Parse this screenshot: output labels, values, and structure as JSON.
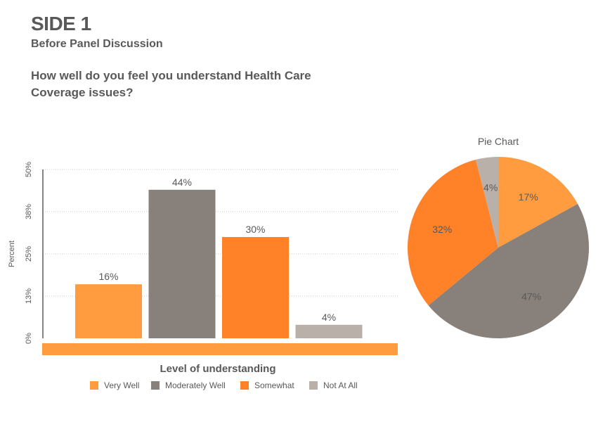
{
  "page": {
    "title": "SIDE 1",
    "subtitle": "Before Panel Discussion",
    "question": "How well do you feel you understand Health Care Coverage issues?"
  },
  "colors": {
    "very_well": "#FF9C3F",
    "moderately_well": "#87807B",
    "somewhat": "#FF8128",
    "not_at_all": "#B9B0AA",
    "text": "#595959"
  },
  "chart_data": [
    {
      "type": "bar",
      "title": "",
      "xlabel": "Level of understanding",
      "ylabel": "Percent",
      "ylim": [
        0,
        50
      ],
      "yticks": [
        "0%",
        "13%",
        "25%",
        "38%",
        "50%"
      ],
      "ytick_values": [
        0,
        12.5,
        25,
        37.5,
        50
      ],
      "grid": true,
      "categories": [
        "Very Well",
        "Moderately Well",
        "Somewhat",
        "Not At All"
      ],
      "values": [
        16,
        44,
        30,
        4
      ],
      "data_labels": [
        "16%",
        "44%",
        "30%",
        "4%"
      ],
      "legend": {
        "placement": "bottom",
        "entries": [
          "Very Well",
          "Moderately Well",
          "Somewhat",
          "Not At All"
        ]
      }
    },
    {
      "type": "pie",
      "title": "Pie Chart",
      "categories": [
        "Very Well",
        "Moderately Well",
        "Somewhat",
        "Not At All"
      ],
      "values": [
        17,
        47,
        32,
        4
      ],
      "data_labels": [
        "17%",
        "47%",
        "32%",
        "4%"
      ]
    }
  ]
}
